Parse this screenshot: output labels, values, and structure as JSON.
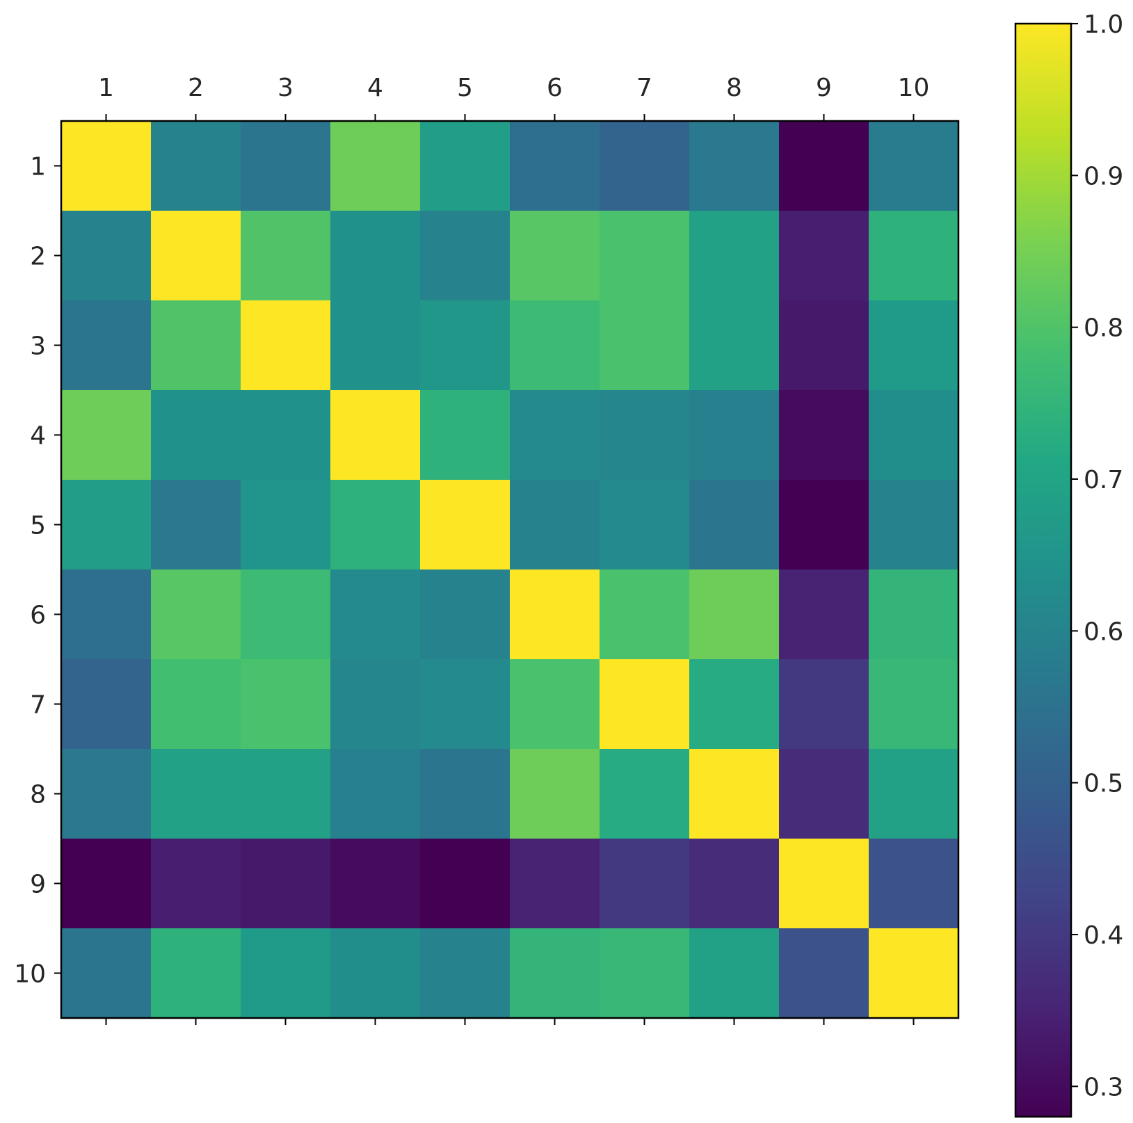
{
  "chart_data": {
    "type": "heatmap",
    "title": "",
    "xlabel": "",
    "ylabel": "",
    "x_tick_position": "top",
    "categories_x": [
      "1",
      "2",
      "3",
      "4",
      "5",
      "6",
      "7",
      "8",
      "9",
      "10"
    ],
    "categories_y": [
      "1",
      "2",
      "3",
      "4",
      "5",
      "6",
      "7",
      "8",
      "9",
      "10"
    ],
    "values": [
      [
        1.0,
        0.6,
        0.56,
        0.84,
        0.68,
        0.54,
        0.51,
        0.57,
        0.28,
        0.58
      ],
      [
        0.6,
        1.0,
        0.8,
        0.64,
        0.6,
        0.81,
        0.79,
        0.69,
        0.34,
        0.74
      ],
      [
        0.56,
        0.8,
        1.0,
        0.64,
        0.66,
        0.77,
        0.79,
        0.69,
        0.33,
        0.67
      ],
      [
        0.84,
        0.64,
        0.64,
        1.0,
        0.74,
        0.62,
        0.61,
        0.59,
        0.3,
        0.63
      ],
      [
        0.68,
        0.57,
        0.65,
        0.74,
        1.0,
        0.6,
        0.62,
        0.56,
        0.28,
        0.6
      ],
      [
        0.54,
        0.81,
        0.77,
        0.62,
        0.6,
        1.0,
        0.79,
        0.84,
        0.35,
        0.75
      ],
      [
        0.51,
        0.78,
        0.79,
        0.61,
        0.62,
        0.79,
        1.0,
        0.72,
        0.4,
        0.76
      ],
      [
        0.57,
        0.69,
        0.69,
        0.59,
        0.56,
        0.84,
        0.72,
        1.0,
        0.37,
        0.69
      ],
      [
        0.28,
        0.34,
        0.33,
        0.3,
        0.28,
        0.35,
        0.4,
        0.37,
        1.0,
        0.46
      ],
      [
        0.56,
        0.74,
        0.67,
        0.63,
        0.6,
        0.75,
        0.76,
        0.69,
        0.46,
        1.0
      ]
    ],
    "colormap": "viridis",
    "vmin": 0.28,
    "vmax": 1.0,
    "colorbar": {
      "ticks": [
        0.3,
        0.4,
        0.5,
        0.6,
        0.7,
        0.8,
        0.9,
        1.0
      ],
      "tick_labels": [
        "0.3",
        "0.4",
        "0.5",
        "0.6",
        "0.7",
        "0.8",
        "0.9",
        "1.0"
      ]
    },
    "grid": false,
    "legend": "none"
  }
}
